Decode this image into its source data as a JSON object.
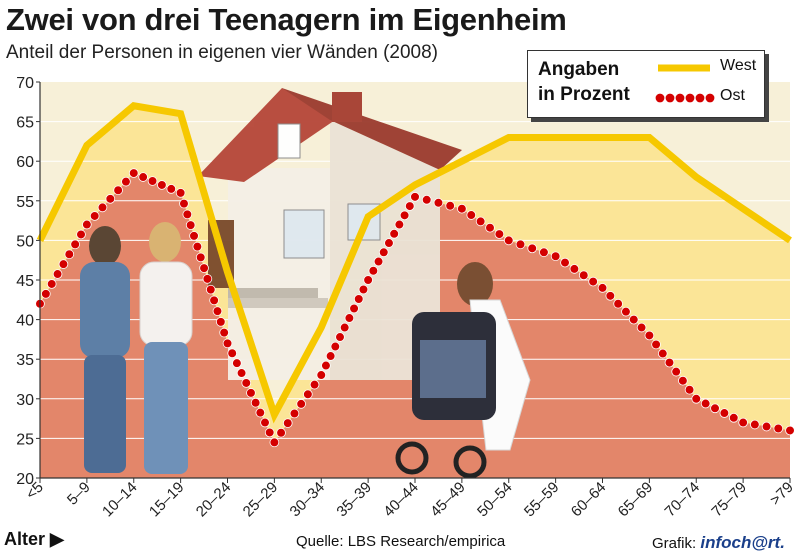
{
  "title": "Zwei von drei Teenagern im Eigenheim",
  "subtitle": "Anteil der Personen in eigenen vier Wänden (2008)",
  "legend": {
    "title_line1": "Angaben",
    "title_line2": "in Prozent",
    "west_label": "West",
    "ost_label": "Ost"
  },
  "footer": {
    "axis_label": "Alter ▶",
    "source": "Quelle: LBS Research/empirica",
    "credit_prefix": "Grafik:",
    "credit_brand": "infoch@rt."
  },
  "colors": {
    "west_line": "#f6c800",
    "west_fill": "#fbe597",
    "ost_dots": "#d40000",
    "ost_fill": "#e3866a",
    "gridline": "#ffffff",
    "background": "#f7f0d8"
  },
  "chart_data": {
    "type": "line",
    "title": "Zwei von drei Teenagern im Eigenheim",
    "subtitle": "Anteil der Personen in eigenen vier Wänden (2008)",
    "xlabel": "Alter",
    "ylabel": "",
    "ylim": [
      20,
      70
    ],
    "yticks": [
      20,
      25,
      30,
      35,
      40,
      45,
      50,
      55,
      60,
      65,
      70
    ],
    "grid": true,
    "legend_position": "top-right",
    "categories": [
      "<5",
      "5–9",
      "10–14",
      "15–19",
      "20–24",
      "25–29",
      "30–34",
      "35–39",
      "40–44",
      "45–49",
      "50–54",
      "55–59",
      "60–64",
      "65–69",
      "70–74",
      "75–79",
      ">79"
    ],
    "series": [
      {
        "name": "West",
        "values": [
          50,
          62,
          67,
          66,
          46,
          28,
          39,
          53,
          57,
          60,
          63,
          63,
          63,
          63,
          58,
          54,
          50
        ]
      },
      {
        "name": "Ost",
        "values": [
          42,
          52,
          58.5,
          56,
          37,
          24.5,
          33,
          45,
          55.5,
          54,
          50,
          48,
          44,
          38,
          30,
          27,
          26
        ]
      }
    ]
  }
}
